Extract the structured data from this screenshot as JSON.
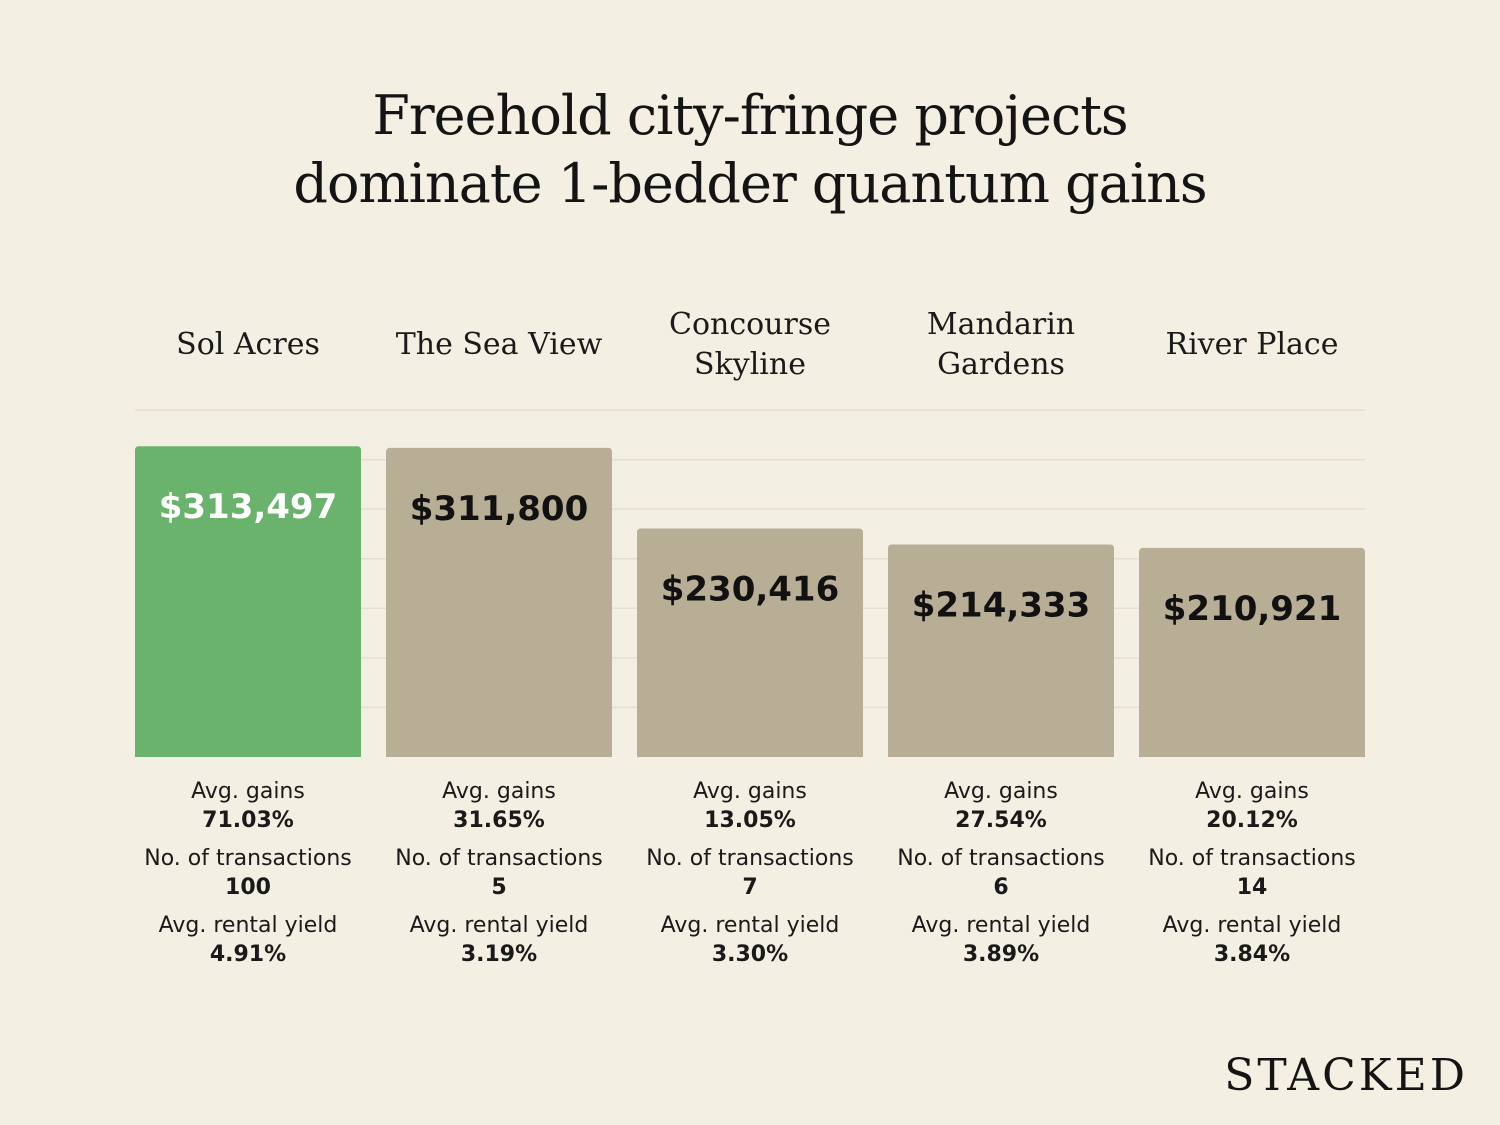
{
  "title_lines": [
    "Freehold city-fringe projects",
    "dominate 1-bedder quantum gains"
  ],
  "brand": "STACKED",
  "stat_labels": {
    "gains": "Avg. gains",
    "transactions": "No. of transactions",
    "yield": "Avg. rental yield"
  },
  "colors": {
    "highlight": "#69b36d",
    "bar": "#b8ad95",
    "background": "#f4efe3",
    "grid": "#e6dfcf"
  },
  "chart_data": {
    "type": "bar",
    "categories": [
      "Sol Acres",
      "The Sea View",
      "Concourse\nSkyline",
      "Mandarin\nGardens",
      "River Place"
    ],
    "values": [
      313497,
      311800,
      230416,
      214333,
      210921
    ],
    "value_labels": [
      "$313,497",
      "$311,800",
      "$230,416",
      "$214,333",
      "$210,921"
    ],
    "highlight_index": 0,
    "ylim": [
      0,
      350000
    ],
    "grid": true,
    "avg_gains": [
      "71.03%",
      "31.65%",
      "13.05%",
      "27.54%",
      "20.12%"
    ],
    "transactions": [
      "100",
      "5",
      "7",
      "6",
      "14"
    ],
    "rental_yield": [
      "4.91%",
      "3.19%",
      "3.30%",
      "3.89%",
      "3.84%"
    ]
  }
}
